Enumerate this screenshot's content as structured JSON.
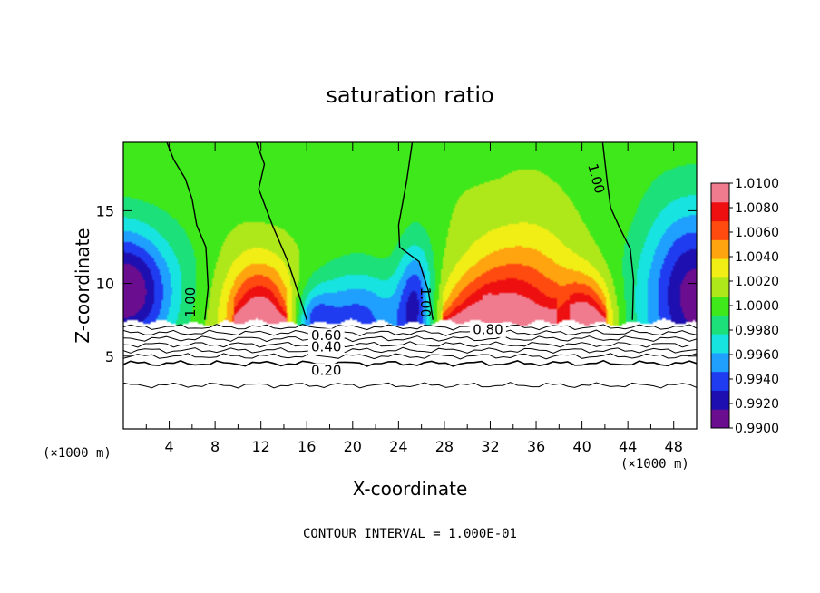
{
  "chart_data": {
    "type": "heatmap",
    "title": "saturation ratio",
    "xlabel": "X-coordinate",
    "ylabel": "Z-coordinate",
    "x_unit_left": "(×1000 m)",
    "x_unit_right": "(×1000 m)",
    "xlim": [
      0,
      50
    ],
    "ylim": [
      0,
      19.7
    ],
    "x_ticks": [
      4,
      8,
      12,
      16,
      20,
      24,
      28,
      32,
      36,
      40,
      44,
      48
    ],
    "y_ticks": [
      5,
      10,
      15
    ],
    "footer": "CONTOUR INTERVAL = 1.000E-01",
    "colorbar": {
      "min": 0.99,
      "max": 1.01,
      "labels": [
        "1.0100",
        "1.0080",
        "1.0060",
        "1.0040",
        "1.0020",
        "1.0000",
        "0.9980",
        "0.9960",
        "0.9940",
        "0.9920",
        "0.9900"
      ],
      "colors": [
        "#6a0d8f",
        "#1e0fb0",
        "#1f3cf0",
        "#1fa0ff",
        "#17e4e0",
        "#1ce07a",
        "#3ee81a",
        "#aee81a",
        "#f0ee14",
        "#ffa30f",
        "#ff4a10",
        "#ee1010",
        "#f07a8e"
      ]
    },
    "surface_z": 7.3,
    "contour_labels": [
      {
        "text": "1.00",
        "x": 5.9,
        "z": 8.7,
        "rotate": -90
      },
      {
        "text": "1.00",
        "x": 26.3,
        "z": 8.7,
        "rotate": 90
      },
      {
        "text": "1.00",
        "x": 41.2,
        "z": 17.2,
        "rotate": 75
      },
      {
        "text": "0.80",
        "x": 31.8,
        "z": 6.8,
        "rotate": 0
      },
      {
        "text": "0.60",
        "x": 17.7,
        "z": 6.4,
        "rotate": 0
      },
      {
        "text": "0.40",
        "x": 17.7,
        "z": 5.6,
        "rotate": 0
      },
      {
        "text": "0.20",
        "x": 17.7,
        "z": 4.0,
        "rotate": 0
      }
    ],
    "contour_z_levels": [
      7.0,
      6.6,
      6.2,
      5.8,
      5.4,
      5.0,
      4.5,
      3.0
    ],
    "saturation_contours": [
      {
        "level": 1.0,
        "points": [
          [
            3.8,
            19.7
          ],
          [
            4.4,
            18.5
          ],
          [
            5.4,
            17.2
          ],
          [
            6.0,
            15.8
          ],
          [
            6.4,
            14.0
          ],
          [
            7.2,
            12.5
          ],
          [
            7.4,
            9.7
          ],
          [
            7.1,
            7.5
          ]
        ]
      },
      {
        "level": 1.0,
        "points": [
          [
            11.6,
            19.7
          ],
          [
            12.3,
            18.2
          ],
          [
            11.8,
            16.5
          ],
          [
            13.0,
            14.0
          ],
          [
            14.3,
            11.6
          ],
          [
            15.2,
            9.5
          ],
          [
            16.0,
            7.5
          ]
        ]
      },
      {
        "level": 1.0,
        "points": [
          [
            25.2,
            19.7
          ],
          [
            24.7,
            17.0
          ],
          [
            24.0,
            14.0
          ],
          [
            24.1,
            12.5
          ],
          [
            25.8,
            11.5
          ],
          [
            26.6,
            9.5
          ],
          [
            27.0,
            7.5
          ]
        ]
      },
      {
        "level": 1.0,
        "points": [
          [
            41.8,
            19.7
          ],
          [
            42.2,
            17.0
          ],
          [
            42.5,
            15.2
          ],
          [
            43.3,
            13.8
          ],
          [
            44.2,
            12.4
          ],
          [
            44.5,
            10.2
          ],
          [
            44.4,
            7.5
          ]
        ]
      }
    ],
    "warm_plumes": [
      {
        "x": 12.0,
        "z": 7.3,
        "peak": 1.0095,
        "rx": 3.3,
        "rz": 4.2
      },
      {
        "x": 34.6,
        "z": 7.3,
        "peak": 1.0085,
        "rx": 4.6,
        "rz": 5.5
      },
      {
        "x": 40.5,
        "z": 7.3,
        "peak": 1.007,
        "rx": 2.3,
        "rz": 3.2
      },
      {
        "x": 30.0,
        "z": 7.3,
        "peak": 1.0045,
        "rx": 3.0,
        "rz": 3.3
      }
    ],
    "cold_regions": [
      {
        "x": 0.0,
        "z": 9.5,
        "depth": 0.9895,
        "rx": 4.4,
        "rz": 4.2
      },
      {
        "x": 20.0,
        "z": 7.3,
        "depth": 0.9935,
        "rx": 4.6,
        "rz": 3.4
      },
      {
        "x": 25.5,
        "z": 8.5,
        "depth": 0.993,
        "rx": 1.6,
        "rz": 4.2
      },
      {
        "x": 50.0,
        "z": 9.0,
        "depth": 0.9905,
        "rx": 4.8,
        "rz": 6.2
      },
      {
        "x": 16.5,
        "z": 7.3,
        "depth": 0.996,
        "rx": 1.6,
        "rz": 2.2
      }
    ]
  }
}
